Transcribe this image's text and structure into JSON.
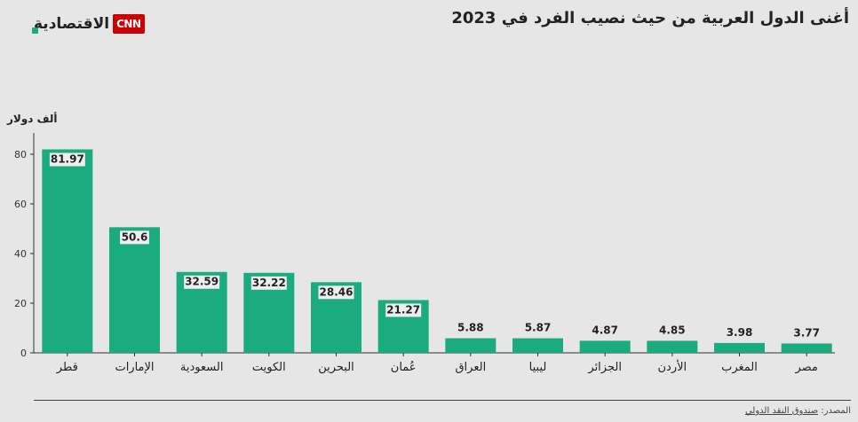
{
  "header": {
    "title": "أغنى الدول العربية من حيث نصيب الفرد في 2023",
    "logo_text": "الاقتصادية",
    "logo_badge": "CNN"
  },
  "footer": {
    "source_label": "المصدر:",
    "source_name": "صندوق النقد الدولي"
  },
  "colors": {
    "bar": "#1aab7e",
    "background": "#e6e6e6",
    "text": "#222222",
    "label_bg": "#eeeeee"
  },
  "chart_data": {
    "type": "bar",
    "ylabel": "ألف دولار",
    "categories": [
      "قطر",
      "الإمارات",
      "السعودية",
      "الكويت",
      "البحرين",
      "عُمان",
      "العراق",
      "ليبيا",
      "الجزائر",
      "الأردن",
      "المغرب",
      "مصر"
    ],
    "values": [
      81.97,
      50.6,
      32.59,
      32.22,
      28.46,
      21.27,
      5.88,
      5.87,
      4.87,
      4.85,
      3.98,
      3.77
    ],
    "value_labels": [
      "81.97",
      "50.6",
      "32.59",
      "32.22",
      "28.46",
      "21.27",
      "5.88",
      "5.87",
      "4.87",
      "4.85",
      "3.98",
      "3.77"
    ],
    "ylim": [
      0,
      85
    ],
    "yticks": [
      0,
      20,
      40,
      60,
      80
    ],
    "grid": false,
    "legend": "none"
  }
}
